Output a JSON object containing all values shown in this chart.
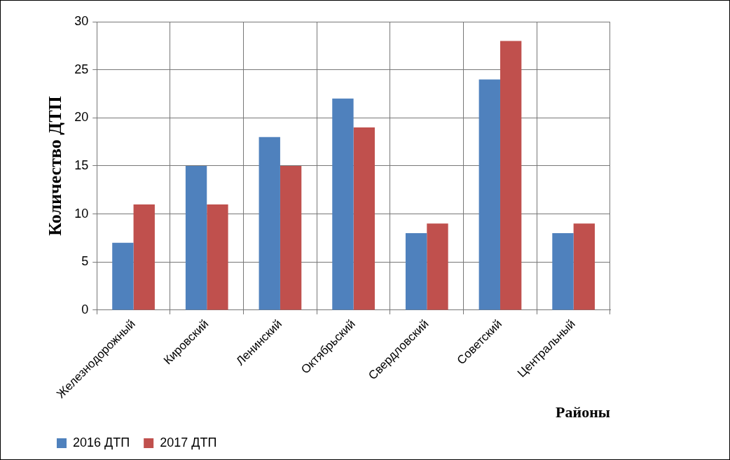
{
  "chart_data": {
    "type": "bar",
    "xlabel": "Районы",
    "ylabel": "Количество ДТП",
    "categories": [
      "Железнодорожный",
      "Кировский",
      "Ленинский",
      "Октябрьский",
      "Свердловский",
      "Советский",
      "Центральный"
    ],
    "series": [
      {
        "name": "2016 ДТП",
        "color": "#4f81bd",
        "values": [
          7,
          15,
          18,
          22,
          8,
          24,
          8
        ]
      },
      {
        "name": "2017 ДТП",
        "color": "#c0504d",
        "values": [
          11,
          11,
          15,
          19,
          9,
          28,
          9
        ]
      }
    ],
    "ylim": [
      0,
      30
    ],
    "yticks": [
      0,
      5,
      10,
      15,
      20,
      25,
      30
    ],
    "grid": true,
    "legend": "bottom"
  }
}
